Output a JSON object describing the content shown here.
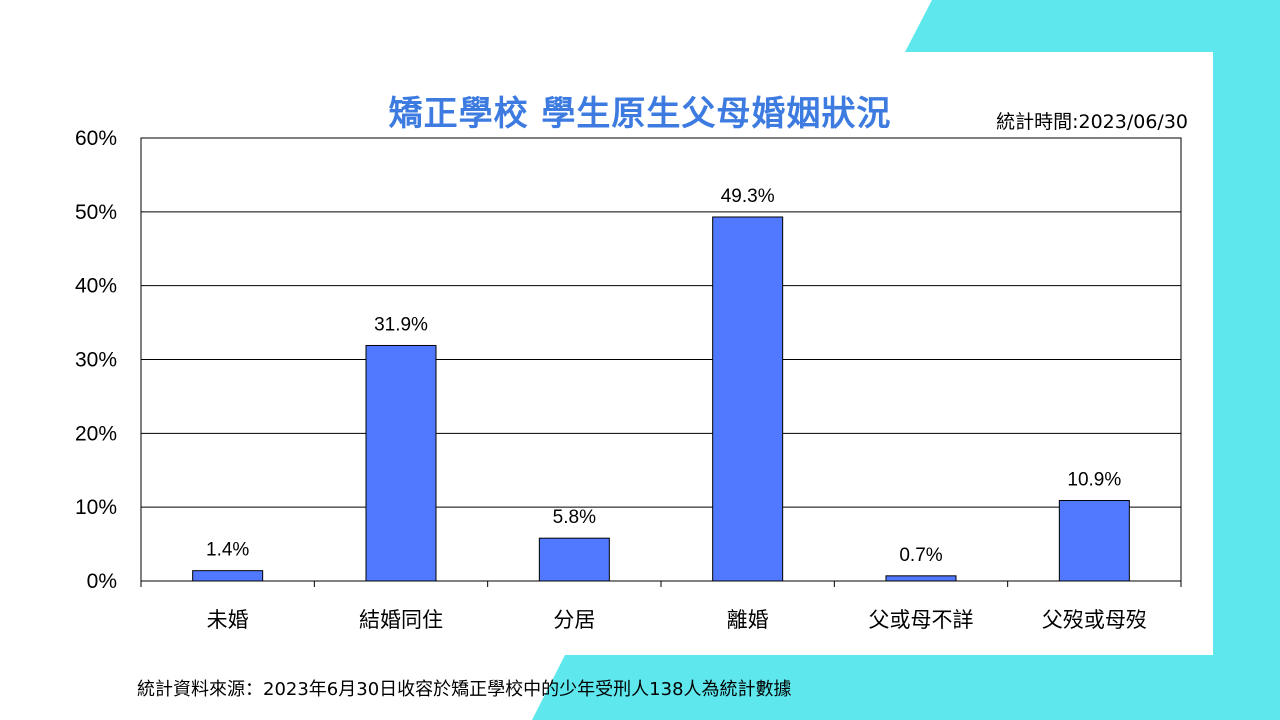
{
  "title": "矯正學校 學生原生父母婚姻狀況",
  "stat_time": "統計時間:2023/06/30",
  "source": "統計資料來源：2023年6月30日收容於矯正學校中的少年受刑人138人為統計數據",
  "colors": {
    "bar": "#5079ff",
    "accent": "#5ee8ee",
    "title": "#3d7be0"
  },
  "chart_data": {
    "type": "bar",
    "categories": [
      "未婚",
      "結婚同住",
      "分居",
      "離婚",
      "父或母不詳",
      "父歿或母歿"
    ],
    "values": [
      1.4,
      31.9,
      5.8,
      49.3,
      0.7,
      10.9
    ],
    "data_labels": [
      "1.4%",
      "31.9%",
      "5.8%",
      "49.3%",
      "0.7%",
      "10.9%"
    ],
    "ylim": [
      0,
      60
    ],
    "yticks": [
      0,
      10,
      20,
      30,
      40,
      50,
      60
    ],
    "ytick_labels": [
      "0%",
      "10%",
      "20%",
      "30%",
      "40%",
      "50%",
      "60%"
    ],
    "grid": true
  }
}
